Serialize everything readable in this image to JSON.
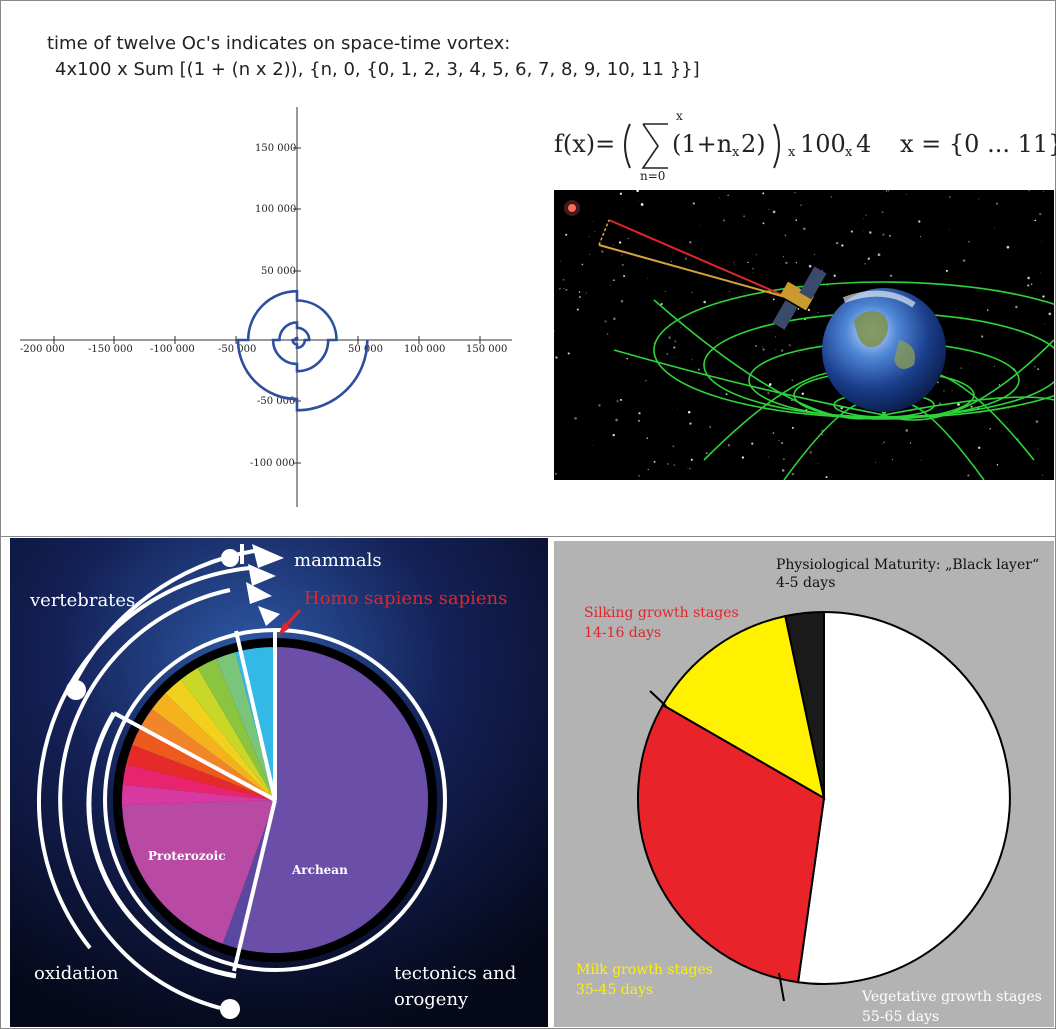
{
  "header": {
    "line1": "time of twelve Oc's indicates on space-time vortex:",
    "line2": "4x100 x Sum [(1 + (n x 2)), {n, 0, {0, 1, 2, 3, 4, 5, 6, 7, 8, 9, 10, 11 }}]"
  },
  "formula": {
    "lhs": "f(x)=",
    "sum_upper": "x",
    "sum_lower": "n=0",
    "term": "(1+n",
    "times_small": "x",
    "term_end": "2)",
    "mult": "100",
    "mult2": "4",
    "domain": "x = {0 ... 11}"
  },
  "vortex_plot": {
    "xticks": [
      "-200 000",
      "-150 000",
      "-100 000",
      "-50 000",
      "50 000",
      "100 000",
      "150 000"
    ],
    "yticks": [
      "150 000",
      "100 000",
      "50 000",
      "-50 000",
      "-100 000"
    ],
    "colors": {
      "spiral": "#2d4f9e",
      "axis": "#333333"
    }
  },
  "space_image": {
    "icons": [
      "earth-icon",
      "satellite-icon",
      "spacetime-grid-icon",
      "star-icon"
    ],
    "colors": {
      "background": "#000000",
      "grid": "#2fd33a",
      "red_ray": "#e0262a",
      "gold_ray": "#d7a23a"
    }
  },
  "geo_clock": {
    "labels": {
      "mammals": "mammals",
      "vertebrates": "vertebrates",
      "homo": "Homo sapiens sapiens",
      "oxidation": "oxidation",
      "tectonics": "tectonics and",
      "orogeny": "orogeny",
      "proterozoic": "Proterozoic",
      "archean": "Archean"
    },
    "colors": {
      "archean": "#6a4ea8",
      "proterozoic": "#b84aa3",
      "homo_label": "#e0262a",
      "background": "#0d1230"
    }
  },
  "maize_pie": {
    "labels": {
      "physio1": "Physiological Maturity: „Black layer“",
      "physio2": "4-5 days",
      "silk1": "Silking growth stages",
      "silk2": "14-16 days",
      "milk1": "Milk growth stages",
      "milk2": "35-45 days",
      "veg1": "Vegetative growth stages",
      "veg2": "55-65 days"
    },
    "colors": {
      "background": "#b3b3b3",
      "vegetative": "#ffffff",
      "milk": "#e8242a",
      "silking": "#fff100",
      "black_layer": "#1a1a1a"
    }
  }
}
